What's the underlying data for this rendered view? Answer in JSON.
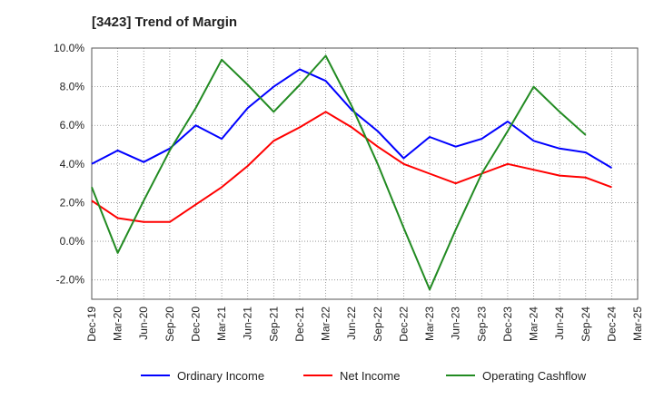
{
  "chart_data": {
    "type": "line",
    "title": "[3423]  Trend of Margin",
    "xlabel": "",
    "ylabel": "",
    "ylim": [
      -3.0,
      10.0
    ],
    "yticks": [
      -2.0,
      0.0,
      2.0,
      4.0,
      6.0,
      8.0,
      10.0
    ],
    "ytick_labels": [
      "-2.0%",
      "0.0%",
      "2.0%",
      "4.0%",
      "6.0%",
      "8.0%",
      "10.0%"
    ],
    "categories": [
      "Dec-19",
      "Mar-20",
      "Jun-20",
      "Sep-20",
      "Dec-20",
      "Mar-21",
      "Jun-21",
      "Sep-21",
      "Dec-21",
      "Mar-22",
      "Jun-22",
      "Sep-22",
      "Dec-22",
      "Mar-23",
      "Jun-23",
      "Sep-23",
      "Dec-23",
      "Mar-24",
      "Jun-24",
      "Sep-24",
      "Dec-24",
      "Mar-25"
    ],
    "grid": true,
    "legend_position": "bottom",
    "series": [
      {
        "name": "Ordinary Income",
        "color": "#0000ff",
        "values": [
          4.0,
          4.7,
          4.1,
          4.8,
          6.0,
          5.3,
          6.9,
          8.0,
          8.9,
          8.3,
          6.8,
          5.7,
          4.3,
          5.4,
          4.9,
          5.3,
          6.2,
          5.2,
          4.8,
          4.6,
          3.8,
          null
        ]
      },
      {
        "name": "Net Income",
        "color": "#ff0000",
        "values": [
          2.1,
          1.2,
          1.0,
          1.0,
          1.9,
          2.8,
          3.9,
          5.2,
          5.9,
          6.7,
          5.9,
          4.9,
          4.0,
          3.5,
          3.0,
          3.5,
          4.0,
          3.7,
          3.4,
          3.3,
          2.8,
          null
        ]
      },
      {
        "name": "Operating Cashflow",
        "color": "#228b22",
        "values": [
          2.8,
          -0.6,
          2.1,
          4.7,
          6.9,
          9.4,
          8.1,
          6.7,
          8.1,
          9.6,
          7.0,
          4.0,
          0.7,
          -2.5,
          0.6,
          3.5,
          5.7,
          8.0,
          6.7,
          5.5,
          null,
          null
        ]
      }
    ]
  }
}
